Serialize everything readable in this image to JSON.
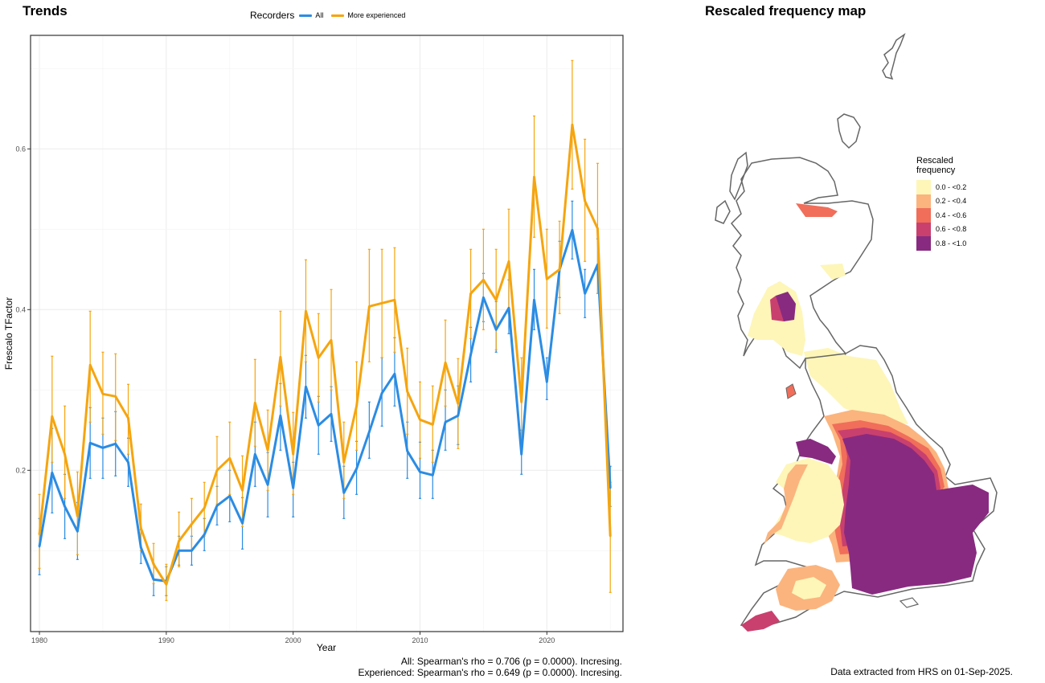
{
  "trends_title": "Trends",
  "map_title": "Rescaled frequency map",
  "legend": {
    "title": "Recorders",
    "items": [
      {
        "label": "All",
        "color": "#2b8ce3"
      },
      {
        "label": "More experienced",
        "color": "#f5a50f"
      }
    ]
  },
  "chart_data": {
    "type": "line",
    "xlabel": "Year",
    "ylabel": "Frescalo TFactor",
    "xlim": [
      1979.3,
      2026
    ],
    "ylim": [
      -0.0007,
      0.7413
    ],
    "x_ticks": [
      1980,
      1990,
      2000,
      2010,
      2020
    ],
    "y_ticks": [
      0.2,
      0.4,
      0.6
    ],
    "y_tick_labels": [
      "0.2",
      "0.4",
      "0.6"
    ],
    "grid": true,
    "legend_position": "top",
    "x": [
      1980,
      1981,
      1982,
      1983,
      1984,
      1985,
      1986,
      1987,
      1988,
      1989,
      1990,
      1991,
      1992,
      1993,
      1994,
      1995,
      1996,
      1997,
      1998,
      1999,
      2000,
      2001,
      2002,
      2003,
      2004,
      2005,
      2006,
      2007,
      2008,
      2009,
      2010,
      2011,
      2012,
      2013,
      2014,
      2015,
      2016,
      2017,
      2018,
      2019,
      2020,
      2021,
      2022,
      2023,
      2024,
      2025
    ],
    "series": [
      {
        "name": "All",
        "color": "#2b8ce3",
        "values": [
          0.105,
          0.197,
          0.155,
          0.124,
          0.234,
          0.228,
          0.233,
          0.21,
          0.104,
          0.064,
          0.062,
          0.1,
          0.1,
          0.12,
          0.156,
          0.168,
          0.134,
          0.22,
          0.182,
          0.268,
          0.178,
          0.304,
          0.256,
          0.27,
          0.172,
          0.202,
          0.248,
          0.296,
          0.32,
          0.224,
          0.198,
          0.194,
          0.26,
          0.268,
          0.344,
          0.415,
          0.375,
          0.402,
          0.22,
          0.412,
          0.31,
          0.45,
          0.499,
          0.42,
          0.456,
          0.178
        ],
        "lower": [
          0.07,
          0.147,
          0.115,
          0.089,
          0.19,
          0.19,
          0.193,
          0.18,
          0.084,
          0.044,
          0.044,
          0.082,
          0.082,
          0.1,
          0.132,
          0.136,
          0.102,
          0.18,
          0.142,
          0.225,
          0.142,
          0.265,
          0.22,
          0.236,
          0.14,
          0.17,
          0.215,
          0.255,
          0.28,
          0.19,
          0.165,
          0.165,
          0.225,
          0.232,
          0.31,
          0.385,
          0.347,
          0.37,
          0.195,
          0.375,
          0.288,
          0.415,
          0.463,
          0.39,
          0.42,
          0.155
        ],
        "upper": [
          0.14,
          0.252,
          0.195,
          0.16,
          0.278,
          0.265,
          0.273,
          0.24,
          0.126,
          0.084,
          0.08,
          0.118,
          0.118,
          0.14,
          0.18,
          0.2,
          0.166,
          0.26,
          0.222,
          0.308,
          0.21,
          0.343,
          0.292,
          0.304,
          0.205,
          0.236,
          0.285,
          0.34,
          0.365,
          0.26,
          0.235,
          0.225,
          0.3,
          0.305,
          0.378,
          0.445,
          0.41,
          0.437,
          0.25,
          0.45,
          0.34,
          0.485,
          0.535,
          0.45,
          0.488,
          0.205
        ]
      },
      {
        "name": "More experienced",
        "color": "#f5a50f",
        "values": [
          0.12,
          0.267,
          0.22,
          0.143,
          0.331,
          0.295,
          0.292,
          0.265,
          0.128,
          0.083,
          0.058,
          0.112,
          0.133,
          0.153,
          0.2,
          0.215,
          0.175,
          0.284,
          0.225,
          0.341,
          0.22,
          0.398,
          0.34,
          0.362,
          0.21,
          0.28,
          0.404,
          0.408,
          0.412,
          0.298,
          0.263,
          0.257,
          0.334,
          0.283,
          0.42,
          0.437,
          0.412,
          0.46,
          0.285,
          0.565,
          0.438,
          0.45,
          0.63,
          0.535,
          0.501,
          0.118
        ],
        "lower": [
          0.078,
          0.21,
          0.165,
          0.095,
          0.26,
          0.245,
          0.237,
          0.22,
          0.1,
          0.059,
          0.038,
          0.08,
          0.1,
          0.118,
          0.158,
          0.17,
          0.13,
          0.23,
          0.175,
          0.28,
          0.17,
          0.335,
          0.285,
          0.3,
          0.165,
          0.225,
          0.335,
          0.34,
          0.347,
          0.245,
          0.215,
          0.21,
          0.28,
          0.227,
          0.364,
          0.375,
          0.35,
          0.395,
          0.238,
          0.49,
          0.377,
          0.395,
          0.55,
          0.46,
          0.42,
          0.048
        ],
        "upper": [
          0.17,
          0.342,
          0.28,
          0.198,
          0.398,
          0.347,
          0.345,
          0.307,
          0.158,
          0.109,
          0.083,
          0.148,
          0.165,
          0.185,
          0.242,
          0.26,
          0.218,
          0.338,
          0.275,
          0.398,
          0.272,
          0.462,
          0.395,
          0.425,
          0.26,
          0.335,
          0.475,
          0.475,
          0.477,
          0.352,
          0.31,
          0.305,
          0.387,
          0.339,
          0.475,
          0.5,
          0.475,
          0.525,
          0.34,
          0.641,
          0.5,
          0.51,
          0.71,
          0.612,
          0.582,
          0.185
        ]
      }
    ]
  },
  "stats": {
    "line1": "All: Spearman's rho = 0.706 (p = 0.0000). Incresing.",
    "line2": "Experienced: Spearman's rho = 0.649 (p = 0.0000). Incresing."
  },
  "map_legend": {
    "title": "Rescaled frequency",
    "items": [
      {
        "label": "0.0 - <0.2",
        "color": "#fdf6b8"
      },
      {
        "label": "0.2 - <0.4",
        "color": "#fbb47e"
      },
      {
        "label": "0.4 - <0.6",
        "color": "#f06e5a"
      },
      {
        "label": "0.6 - <0.8",
        "color": "#c9406e"
      },
      {
        "label": "0.8 - <1.0",
        "color": "#882a80"
      }
    ]
  },
  "source_note": "Data extracted from HRS on 01-Sep-2025."
}
